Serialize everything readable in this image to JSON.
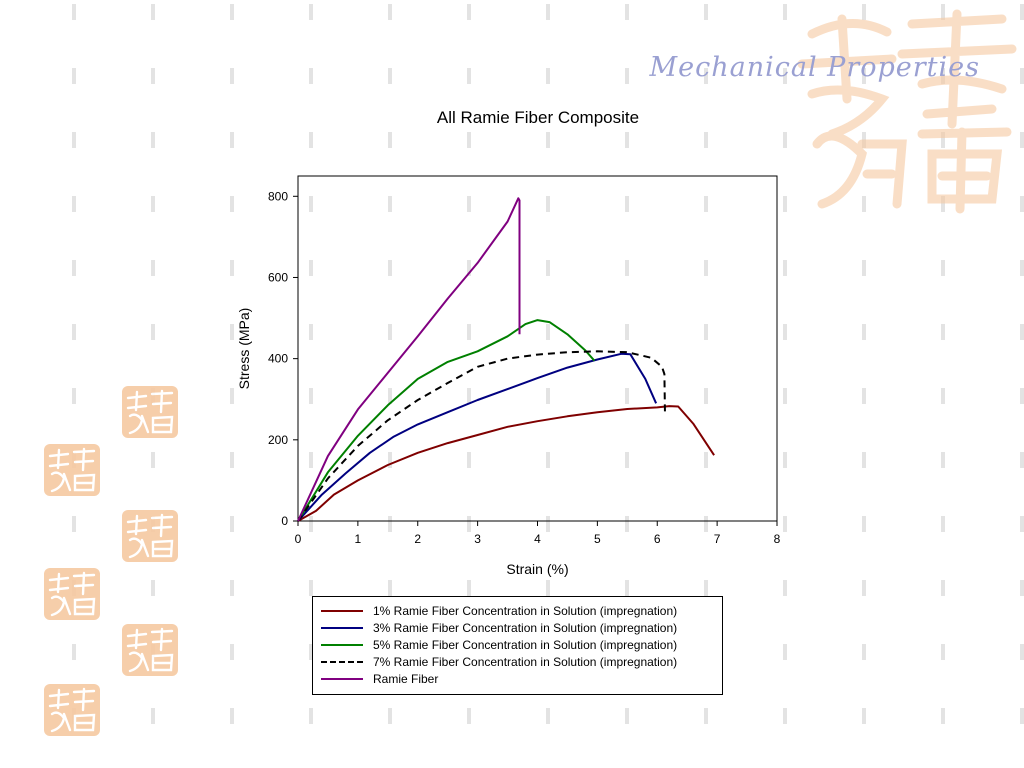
{
  "slide": {
    "title": "Mechanical Properties"
  },
  "decor": {
    "seal_color": "#f6c9a1",
    "dash_color": "#e3e3e3",
    "stamp_icon": "calligraphy-seal-icon"
  },
  "chart_data": {
    "type": "line",
    "title": "All Ramie Fiber Composite",
    "xlabel": "Strain (%)",
    "ylabel": "Stress (MPa)",
    "xlim": [
      0,
      8
    ],
    "ylim": [
      0,
      850
    ],
    "xticks": [
      0,
      1,
      2,
      3,
      4,
      5,
      6,
      7,
      8
    ],
    "yticks": [
      0,
      200,
      400,
      600,
      800
    ],
    "grid": false,
    "legend_position": "bottom",
    "series": [
      {
        "name": "1% Ramie Fiber Concentration in Solution (impregnation)",
        "color": "#7f0000",
        "dash": "solid",
        "points": [
          [
            0,
            0
          ],
          [
            0.3,
            25
          ],
          [
            0.6,
            65
          ],
          [
            1,
            100
          ],
          [
            1.5,
            138
          ],
          [
            2,
            168
          ],
          [
            2.5,
            192
          ],
          [
            3,
            212
          ],
          [
            3.5,
            232
          ],
          [
            4,
            246
          ],
          [
            4.5,
            258
          ],
          [
            5,
            268
          ],
          [
            5.5,
            276
          ],
          [
            6,
            280
          ],
          [
            6.2,
            283
          ],
          [
            6.35,
            282
          ],
          [
            6.6,
            240
          ],
          [
            6.95,
            162
          ]
        ]
      },
      {
        "name": "3% Ramie Fiber Concentration in Solution (impregnation)",
        "color": "#000080",
        "dash": "solid",
        "points": [
          [
            0,
            0
          ],
          [
            0.4,
            65
          ],
          [
            0.8,
            118
          ],
          [
            1.2,
            168
          ],
          [
            1.6,
            208
          ],
          [
            2,
            238
          ],
          [
            2.5,
            268
          ],
          [
            3,
            298
          ],
          [
            3.5,
            325
          ],
          [
            4,
            352
          ],
          [
            4.5,
            378
          ],
          [
            5,
            398
          ],
          [
            5.4,
            412
          ],
          [
            5.55,
            411
          ],
          [
            5.8,
            350
          ],
          [
            5.98,
            290
          ]
        ]
      },
      {
        "name": "5% Ramie Fiber Concentration in Solution (impregnation)",
        "color": "#008000",
        "dash": "solid",
        "points": [
          [
            0,
            0
          ],
          [
            0.5,
            120
          ],
          [
            1,
            210
          ],
          [
            1.5,
            285
          ],
          [
            2,
            350
          ],
          [
            2.5,
            392
          ],
          [
            3,
            418
          ],
          [
            3.5,
            455
          ],
          [
            3.8,
            485
          ],
          [
            4,
            495
          ],
          [
            4.2,
            490
          ],
          [
            4.5,
            460
          ],
          [
            4.8,
            420
          ],
          [
            4.95,
            395
          ]
        ]
      },
      {
        "name": "7% Ramie Fiber Concentration in Solution (impregnation)",
        "color": "#000000",
        "dash": "dashed",
        "points": [
          [
            0,
            0
          ],
          [
            0.5,
            105
          ],
          [
            1,
            185
          ],
          [
            1.5,
            248
          ],
          [
            2,
            298
          ],
          [
            2.5,
            340
          ],
          [
            3,
            380
          ],
          [
            3.5,
            400
          ],
          [
            4,
            410
          ],
          [
            4.5,
            416
          ],
          [
            5,
            418
          ],
          [
            5.5,
            416
          ],
          [
            5.9,
            402
          ],
          [
            6.08,
            380
          ],
          [
            6.12,
            362
          ],
          [
            6.13,
            260
          ]
        ]
      },
      {
        "name": "Ramie Fiber",
        "color": "#800080",
        "dash": "solid",
        "points": [
          [
            0,
            0
          ],
          [
            0.5,
            160
          ],
          [
            1,
            275
          ],
          [
            1.5,
            365
          ],
          [
            2,
            455
          ],
          [
            2.5,
            548
          ],
          [
            3,
            636
          ],
          [
            3.5,
            738
          ],
          [
            3.68,
            795
          ],
          [
            3.7,
            790
          ],
          [
            3.7,
            460
          ]
        ]
      }
    ]
  }
}
